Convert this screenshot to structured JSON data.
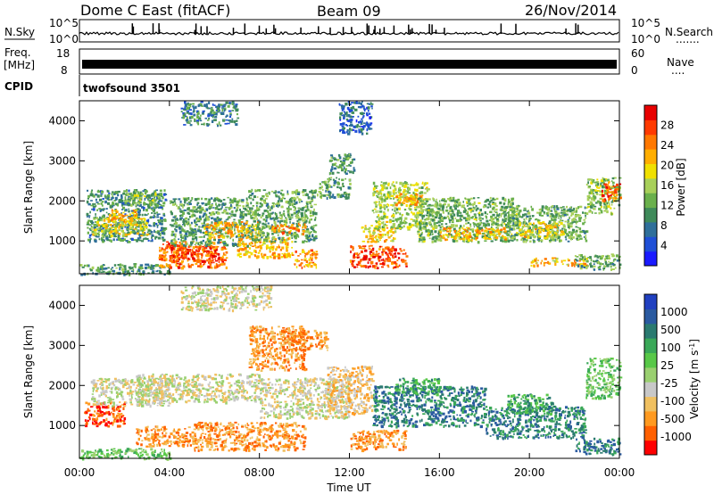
{
  "header": {
    "station": "Dome C East (fitACF)",
    "beam": "Beam 09",
    "date": "26/Nov/2014"
  },
  "noise_panel": {
    "left_label": "N.Sky",
    "right_label": "N.Search",
    "right_dots": ".......",
    "ytick_top": "10^5",
    "ytick_bottom": "10^0"
  },
  "freq_panel": {
    "left_label_1": "Freq.",
    "left_label_2": "[MHz]",
    "left_tick_top": "18",
    "left_tick_bottom": "8",
    "right_label": "Nave",
    "right_dots": "....",
    "right_tick_top": "60",
    "right_tick_bottom": "0"
  },
  "cpid": {
    "label": "CPID",
    "value": "twofsound 3501"
  },
  "x_axis": {
    "label": "Time UT",
    "ticks": [
      "00:00",
      "04:00",
      "08:00",
      "12:00",
      "16:00",
      "20:00",
      "00:00"
    ]
  },
  "colors": {
    "power": [
      "#1a1aff",
      "#1f4fd6",
      "#2f6f9a",
      "#3f8a5a",
      "#6ab04c",
      "#a8d05a",
      "#f0e000",
      "#ffae00",
      "#ff7800",
      "#ff3a00",
      "#e80000"
    ],
    "velocity": [
      "#ff0000",
      "#ff6000",
      "#ff9a20",
      "#f0c060",
      "#c8c8c8",
      "#9ad070",
      "#58c848",
      "#3aa858",
      "#2a7a70",
      "#2a5aa0",
      "#2040c0"
    ]
  },
  "chart_data": [
    {
      "type": "heatmap",
      "name": "Power",
      "ylabel": "Slant Range [km]",
      "ylim": [
        180,
        4500
      ],
      "yticks": [
        "1000",
        "2000",
        "3000",
        "4000"
      ],
      "ytick_values": [
        1000,
        2000,
        3000,
        4000
      ],
      "xlim": [
        0,
        24
      ],
      "colorbar": {
        "label": "Power [dB]",
        "range": [
          0,
          32
        ],
        "ticks": [
          "4",
          "8",
          "12",
          "16",
          "20",
          "24",
          "28"
        ]
      },
      "patches": [
        {
          "t0": 0.0,
          "t1": 4.0,
          "r0": 180,
          "r1": 450,
          "v": 10
        },
        {
          "t0": 0.3,
          "t1": 3.8,
          "r0": 1000,
          "r1": 2300,
          "v": 9
        },
        {
          "t0": 0.5,
          "t1": 3.0,
          "r0": 1150,
          "r1": 1600,
          "v": 18
        },
        {
          "t0": 2.0,
          "t1": 3.5,
          "r0": 1900,
          "r1": 2300,
          "v": 14
        },
        {
          "t0": 1.2,
          "t1": 2.5,
          "r0": 1400,
          "r1": 1800,
          "v": 22
        },
        {
          "t0": 3.5,
          "t1": 6.5,
          "r0": 350,
          "r1": 1000,
          "v": 26
        },
        {
          "t0": 4.0,
          "t1": 6.2,
          "r0": 500,
          "r1": 900,
          "v": 29
        },
        {
          "t0": 4.0,
          "t1": 7.5,
          "r0": 900,
          "r1": 2100,
          "v": 11
        },
        {
          "t0": 5.5,
          "t1": 8.0,
          "r0": 1100,
          "r1": 1500,
          "v": 22
        },
        {
          "t0": 7.0,
          "t1": 9.5,
          "r0": 600,
          "r1": 1100,
          "v": 22
        },
        {
          "t0": 7.5,
          "t1": 10.5,
          "r0": 1000,
          "r1": 2300,
          "v": 12
        },
        {
          "t0": 8.5,
          "t1": 10.0,
          "r0": 1200,
          "r1": 1450,
          "v": 25
        },
        {
          "t0": 9.5,
          "t1": 10.5,
          "r0": 350,
          "r1": 800,
          "v": 24
        },
        {
          "t0": 10.5,
          "t1": 12.0,
          "r0": 2100,
          "r1": 2600,
          "v": 12
        },
        {
          "t0": 11.0,
          "t1": 12.2,
          "r0": 2700,
          "r1": 3200,
          "v": 10
        },
        {
          "t0": 12.0,
          "t1": 14.5,
          "r0": 350,
          "r1": 900,
          "v": 28
        },
        {
          "t0": 12.5,
          "t1": 14.0,
          "r0": 1000,
          "r1": 1400,
          "v": 20
        },
        {
          "t0": 13.0,
          "t1": 15.5,
          "r0": 1300,
          "r1": 2500,
          "v": 16
        },
        {
          "t0": 14.0,
          "t1": 15.2,
          "r0": 1900,
          "r1": 2200,
          "v": 22
        },
        {
          "t0": 15.0,
          "t1": 19.5,
          "r0": 1000,
          "r1": 2100,
          "v": 13
        },
        {
          "t0": 16.0,
          "t1": 19.0,
          "r0": 1050,
          "r1": 1350,
          "v": 22
        },
        {
          "t0": 19.0,
          "t1": 22.5,
          "r0": 1000,
          "r1": 1900,
          "v": 12
        },
        {
          "t0": 19.5,
          "t1": 21.5,
          "r0": 1100,
          "r1": 1500,
          "v": 20
        },
        {
          "t0": 20.0,
          "t1": 22.5,
          "r0": 400,
          "r1": 600,
          "v": 21
        },
        {
          "t0": 22.0,
          "t1": 24.0,
          "r0": 300,
          "r1": 700,
          "v": 12
        },
        {
          "t0": 22.5,
          "t1": 24.0,
          "r0": 1700,
          "r1": 2600,
          "v": 14
        },
        {
          "t0": 23.2,
          "t1": 24.0,
          "r0": 2000,
          "r1": 2500,
          "v": 27
        },
        {
          "t0": 4.5,
          "t1": 7.0,
          "r0": 3900,
          "r1": 4500,
          "v": 8
        },
        {
          "t0": 11.5,
          "t1": 13.0,
          "r0": 3700,
          "r1": 4500,
          "v": 6
        }
      ]
    },
    {
      "type": "heatmap",
      "name": "Velocity",
      "ylabel": "Slant Range [km]",
      "ylim": [
        180,
        4500
      ],
      "yticks": [
        "1000",
        "2000",
        "3000",
        "4000"
      ],
      "ytick_values": [
        1000,
        2000,
        3000,
        4000
      ],
      "xlim": [
        0,
        24
      ],
      "colorbar": {
        "label": "Velocity [m s^-1]",
        "ticks": [
          "-1000",
          "-500",
          "-100",
          "-25",
          "25",
          "100",
          "500",
          "1000"
        ]
      },
      "patches": [
        {
          "t0": 0.0,
          "t1": 4.0,
          "r0": 180,
          "r1": 450,
          "v": 6
        },
        {
          "t0": 0.2,
          "t1": 2.0,
          "r0": 1000,
          "r1": 1600,
          "v": 1
        },
        {
          "t0": 0.5,
          "t1": 4.0,
          "r0": 1500,
          "r1": 2200,
          "v": 4
        },
        {
          "t0": 2.5,
          "t1": 5.0,
          "r0": 500,
          "r1": 1000,
          "v": 2
        },
        {
          "t0": 2.5,
          "t1": 8.0,
          "r0": 1600,
          "r1": 2300,
          "v": 4
        },
        {
          "t0": 5.0,
          "t1": 10.0,
          "r0": 400,
          "r1": 1100,
          "v": 2
        },
        {
          "t0": 7.5,
          "t1": 10.0,
          "r0": 2400,
          "r1": 3500,
          "v": 2
        },
        {
          "t0": 8.0,
          "t1": 12.0,
          "r0": 1200,
          "r1": 2200,
          "v": 4
        },
        {
          "t0": 11.0,
          "t1": 13.0,
          "r0": 1300,
          "r1": 2500,
          "v": 3
        },
        {
          "t0": 12.0,
          "t1": 14.5,
          "r0": 400,
          "r1": 900,
          "v": 2
        },
        {
          "t0": 13.0,
          "t1": 18.0,
          "r0": 1000,
          "r1": 2000,
          "v": 8
        },
        {
          "t0": 14.0,
          "t1": 16.0,
          "r0": 1800,
          "r1": 2200,
          "v": 7
        },
        {
          "t0": 18.0,
          "t1": 22.5,
          "r0": 700,
          "r1": 1500,
          "v": 8
        },
        {
          "t0": 19.0,
          "t1": 21.0,
          "r0": 1300,
          "r1": 1800,
          "v": 7
        },
        {
          "t0": 22.0,
          "t1": 24.0,
          "r0": 300,
          "r1": 700,
          "v": 8
        },
        {
          "t0": 22.5,
          "t1": 24.0,
          "r0": 1700,
          "r1": 2700,
          "v": 6
        },
        {
          "t0": 4.5,
          "t1": 8.5,
          "r0": 3900,
          "r1": 4500,
          "v": 4
        },
        {
          "t0": 9.0,
          "t1": 11.0,
          "r0": 2900,
          "r1": 3400,
          "v": 2
        }
      ]
    }
  ]
}
